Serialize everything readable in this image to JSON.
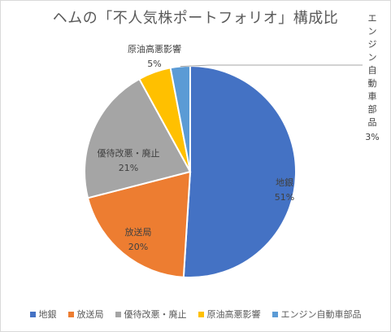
{
  "chart_data": {
    "type": "pie",
    "title": "ヘムの「不人気株ポートフォリオ」構成比",
    "slices": [
      {
        "name": "地銀",
        "value": 51,
        "label": "51%",
        "color": "#4472c4"
      },
      {
        "name": "放送局",
        "value": 20,
        "label": "20%",
        "color": "#ed7d31"
      },
      {
        "name": "優待改悪・廃止",
        "value": 21,
        "label": "21%",
        "color": "#a5a5a5"
      },
      {
        "name": "原油高悪影響",
        "value": 5,
        "label": "5%",
        "color": "#ffc000"
      },
      {
        "name": "エンジン自動車部品",
        "value": 3,
        "label": "3%",
        "color": "#5b9bd5"
      }
    ],
    "legend_position": "bottom"
  }
}
